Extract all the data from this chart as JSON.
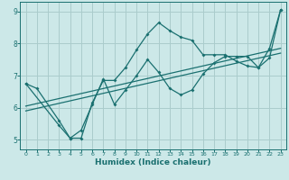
{
  "xlabel": "Humidex (Indice chaleur)",
  "bg_color": "#cce8e8",
  "grid_color": "#aacccc",
  "line_color": "#1a7070",
  "xlim": [
    -0.5,
    23.5
  ],
  "ylim": [
    4.7,
    9.3
  ],
  "xticks": [
    0,
    1,
    2,
    3,
    4,
    5,
    6,
    7,
    8,
    9,
    10,
    11,
    12,
    13,
    14,
    15,
    16,
    17,
    18,
    19,
    20,
    21,
    22,
    23
  ],
  "yticks": [
    5,
    6,
    7,
    8,
    9
  ],
  "series1_x": [
    0,
    1,
    3,
    4,
    5,
    6,
    7,
    8,
    9,
    10,
    11,
    12,
    13,
    14,
    15,
    16,
    17,
    18,
    19,
    20,
    21,
    22,
    23
  ],
  "series1_y": [
    6.75,
    6.6,
    5.6,
    5.05,
    5.05,
    6.15,
    6.85,
    6.85,
    7.25,
    7.8,
    8.3,
    8.65,
    8.4,
    8.2,
    8.1,
    7.65,
    7.65,
    7.65,
    7.45,
    7.3,
    7.25,
    7.85,
    9.05
  ],
  "series2_x": [
    0,
    3,
    4,
    5,
    6,
    7,
    8,
    9,
    10,
    11,
    12,
    13,
    14,
    15,
    16,
    17,
    18,
    19,
    20,
    21,
    22,
    23
  ],
  "series2_y": [
    6.75,
    5.45,
    5.05,
    5.3,
    6.1,
    6.9,
    6.1,
    6.55,
    7.0,
    7.5,
    7.1,
    6.6,
    6.4,
    6.55,
    7.05,
    7.4,
    7.6,
    7.6,
    7.6,
    7.25,
    7.55,
    9.05
  ],
  "trend1_x": [
    0,
    23
  ],
  "trend1_y": [
    5.9,
    7.7
  ],
  "trend2_x": [
    0,
    23
  ],
  "trend2_y": [
    6.05,
    7.85
  ]
}
